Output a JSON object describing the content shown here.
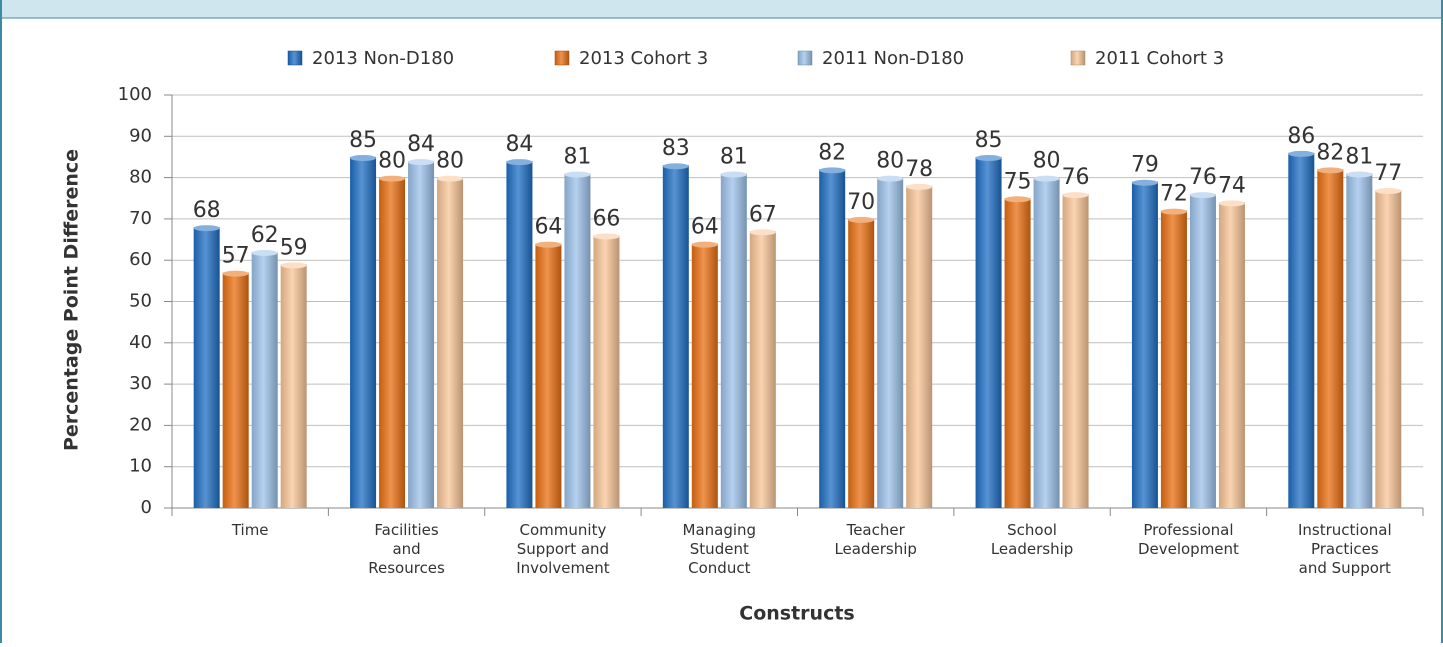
{
  "chart_data": {
    "type": "bar",
    "x_label": "Constructs",
    "y_label": "Percentage Point Difference",
    "categories": [
      "Time",
      "Facilities and Resources",
      "Community Support and Involvement",
      "Managing Student Conduct",
      "Teacher Leadership",
      "School Leadership",
      "Professional Development",
      "Instructional Practices and Support"
    ],
    "series": [
      {
        "name": "2013 Non-D180",
        "color": "#1f6fc4",
        "values": [
          68,
          85,
          84,
          83,
          82,
          85,
          79,
          86
        ]
      },
      {
        "name": "2013 Cohort 3",
        "color": "#e86f12",
        "values": [
          57,
          80,
          64,
          64,
          70,
          75,
          72,
          82
        ]
      },
      {
        "name": "2011 Non-D180",
        "color": "#9cc1ea",
        "values": [
          62,
          84,
          81,
          81,
          80,
          80,
          76,
          81
        ]
      },
      {
        "name": "2011 Cohort 3",
        "color": "#f8c597",
        "values": [
          59,
          80,
          66,
          67,
          78,
          76,
          74,
          77
        ]
      }
    ],
    "ylim": [
      0,
      100
    ],
    "yticks": [
      0,
      10,
      20,
      30,
      40,
      50,
      60,
      70,
      80,
      90,
      100
    ],
    "grid": true,
    "legend": "top"
  }
}
